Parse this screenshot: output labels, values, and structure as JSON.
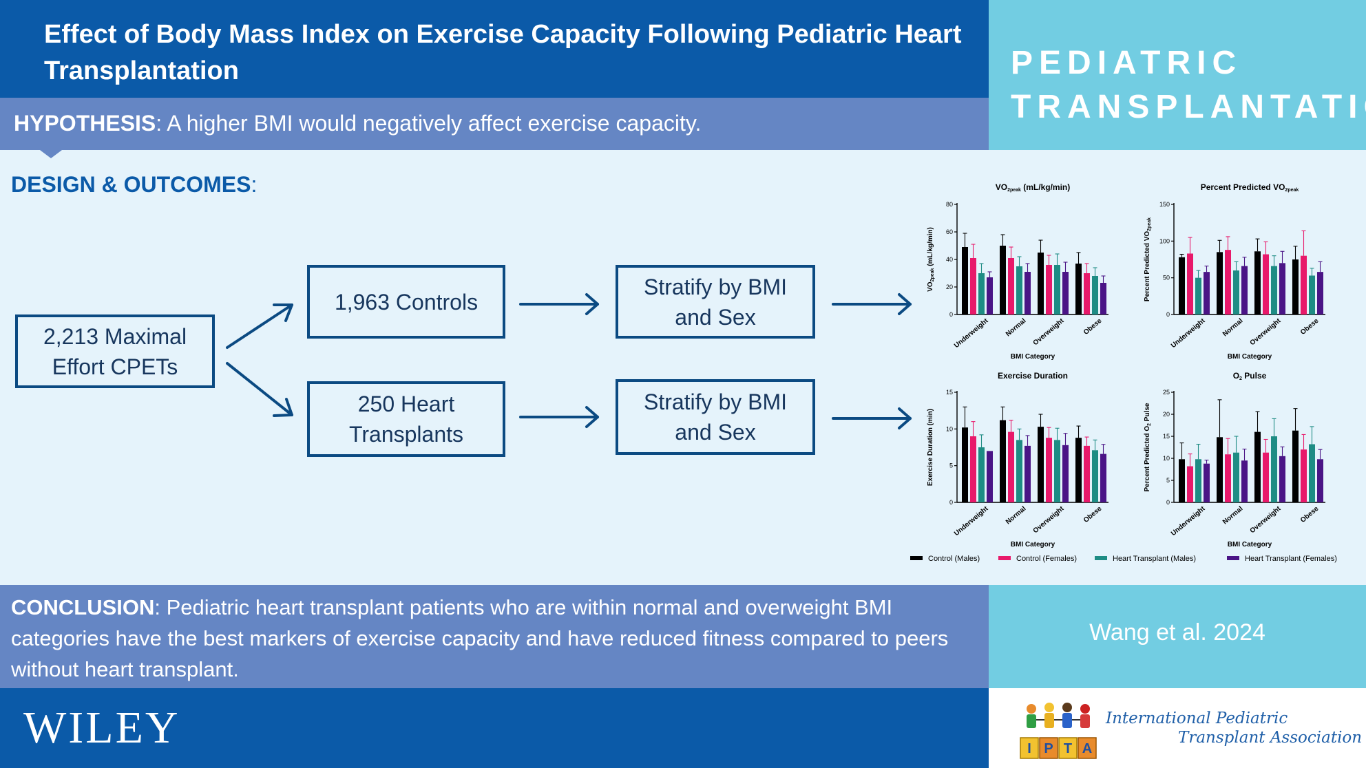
{
  "header": {
    "title": "Effect of Body Mass Index on Exercise Capacity Following Pediatric Heart Transplantation",
    "journal_line1": "PEDIATRIC",
    "journal_line2": "TRANSPLANTATION"
  },
  "hypothesis": {
    "label": "HYPOTHESIS",
    "text": ": A higher BMI would negatively affect exercise capacity."
  },
  "design": {
    "label": "DESIGN & OUTCOMES",
    "colon": ":",
    "boxes": {
      "cpets": "2,213 Maximal Effort CPETs",
      "controls": "1,963 Controls",
      "transplants": "250 Heart Transplants",
      "stratify_1": "Stratify by BMI and Sex",
      "stratify_2": "Stratify by BMI and Sex"
    }
  },
  "colors": {
    "control_males": "#000000",
    "control_females": "#e8196a",
    "ht_males": "#1e8c84",
    "ht_females": "#4a1486",
    "primary_blue": "#0b5aa8",
    "light_blue": "#72cde2",
    "mid_blue": "#6586c4",
    "panel_bg": "#e5f3fb",
    "box_border": "#0b4a82"
  },
  "chart_data": [
    {
      "type": "bar",
      "title_main": "VO",
      "title_sub": "2peak",
      "title_unit": " (mL/kg/min)",
      "ylabel_main": "VO",
      "ylabel_sub": "2peak",
      "ylabel_unit": " (mL/kg/min)",
      "xlabel": "BMI Category",
      "categories": [
        "Underweight",
        "Normal",
        "Overweight",
        "Obese"
      ],
      "ylim": [
        0,
        80
      ],
      "yticks": [
        0,
        20,
        40,
        60,
        80
      ],
      "series": [
        {
          "name": "Control (Males)",
          "values": [
            49,
            50,
            45,
            37
          ],
          "errors": [
            10,
            8,
            9,
            8
          ]
        },
        {
          "name": "Control (Females)",
          "values": [
            41,
            41,
            36,
            30
          ],
          "errors": [
            10,
            8,
            7,
            7
          ]
        },
        {
          "name": "Heart Transplant (Males)",
          "values": [
            30,
            35,
            36,
            28
          ],
          "errors": [
            7,
            7,
            8,
            6
          ]
        },
        {
          "name": "Heart Transplant (Females)",
          "values": [
            27,
            31,
            31,
            23
          ],
          "errors": [
            4,
            6,
            7,
            5
          ]
        }
      ]
    },
    {
      "type": "bar",
      "title_main": "Percent Predicted VO",
      "title_sub": "2peak",
      "title_unit": "",
      "ylabel_main": "Percent Predicted VO",
      "ylabel_sub": "2peak",
      "ylabel_unit": "",
      "xlabel": "BMI Category",
      "categories": [
        "Underweight",
        "Normal",
        "Overweight",
        "Obese"
      ],
      "ylim": [
        0,
        150
      ],
      "yticks": [
        0,
        50,
        100,
        150
      ],
      "series": [
        {
          "name": "Control (Males)",
          "values": [
            78,
            85,
            86,
            75
          ],
          "errors": [
            4,
            16,
            17,
            18
          ]
        },
        {
          "name": "Control (Females)",
          "values": [
            83,
            88,
            82,
            80
          ],
          "errors": [
            22,
            18,
            17,
            34
          ]
        },
        {
          "name": "Heart Transplant (Males)",
          "values": [
            50,
            60,
            66,
            53
          ],
          "errors": [
            10,
            12,
            14,
            10
          ]
        },
        {
          "name": "Heart Transplant (Females)",
          "values": [
            58,
            66,
            70,
            58
          ],
          "errors": [
            8,
            12,
            16,
            14
          ]
        }
      ]
    },
    {
      "type": "bar",
      "title_main": "Exercise Duration",
      "title_sub": "",
      "title_unit": "",
      "ylabel_main": "Exercise Duration (min)",
      "ylabel_sub": "",
      "ylabel_unit": "",
      "xlabel": "BMI Category",
      "categories": [
        "Underweight",
        "Normal",
        "Overweight",
        "Obese"
      ],
      "ylim": [
        0,
        15
      ],
      "yticks": [
        0,
        5,
        10,
        15
      ],
      "series": [
        {
          "name": "Control (Males)",
          "values": [
            10.2,
            11.2,
            10.3,
            8.8
          ],
          "errors": [
            2.8,
            1.8,
            1.7,
            1.6
          ]
        },
        {
          "name": "Control (Females)",
          "values": [
            9.0,
            9.6,
            8.8,
            7.7
          ],
          "errors": [
            2.0,
            1.6,
            1.4,
            1.2
          ]
        },
        {
          "name": "Heart Transplant (Males)",
          "values": [
            7.5,
            8.5,
            8.5,
            7.1
          ],
          "errors": [
            1.7,
            1.5,
            1.6,
            1.4
          ]
        },
        {
          "name": "Heart Transplant (Females)",
          "values": [
            7.0,
            7.7,
            7.8,
            6.6
          ],
          "errors": [
            0,
            1.4,
            1.6,
            1.3
          ]
        }
      ]
    },
    {
      "type": "bar",
      "title_main": "O",
      "title_sub": "2",
      "title_unit": " Pulse",
      "ylabel_main": "Percent Predicted O",
      "ylabel_sub": "2",
      "ylabel_unit": " Pulse",
      "xlabel": "BMI Category",
      "categories": [
        "Underweight",
        "Normal",
        "Overweight",
        "Obese"
      ],
      "ylim": [
        0,
        25
      ],
      "yticks": [
        0,
        5,
        10,
        15,
        20,
        25
      ],
      "series": [
        {
          "name": "Control (Males)",
          "values": [
            9.8,
            14.8,
            16.0,
            16.3
          ],
          "errors": [
            3.7,
            8.5,
            4.6,
            5.0
          ]
        },
        {
          "name": "Control (Females)",
          "values": [
            8.2,
            10.9,
            11.3,
            12.0
          ],
          "errors": [
            2.8,
            3.6,
            3.0,
            3.4
          ]
        },
        {
          "name": "Heart Transplant (Males)",
          "values": [
            9.8,
            11.3,
            15.0,
            13.2
          ],
          "errors": [
            3.4,
            3.7,
            4.0,
            4.0
          ]
        },
        {
          "name": "Heart Transplant (Females)",
          "values": [
            8.8,
            9.5,
            10.5,
            9.8
          ],
          "errors": [
            0.8,
            2.6,
            2.1,
            2.2
          ]
        }
      ]
    }
  ],
  "legend": [
    "Control (Males)",
    "Control (Females)",
    "Heart Transplant (Males)",
    "Heart Transplant (Females)"
  ],
  "conclusion": {
    "label": "CONCLUSION",
    "text": ": Pediatric heart transplant patients who are within normal and overweight BMI categories have the best markers of exercise capacity and have reduced fitness compared to peers without heart transplant."
  },
  "citation": "Wang et al. 2024",
  "publisher": "WILEY",
  "association": {
    "line1": "International Pediatric",
    "line2": "Transplant Association",
    "logo_letters": [
      "I",
      "P",
      "T",
      "A"
    ]
  }
}
